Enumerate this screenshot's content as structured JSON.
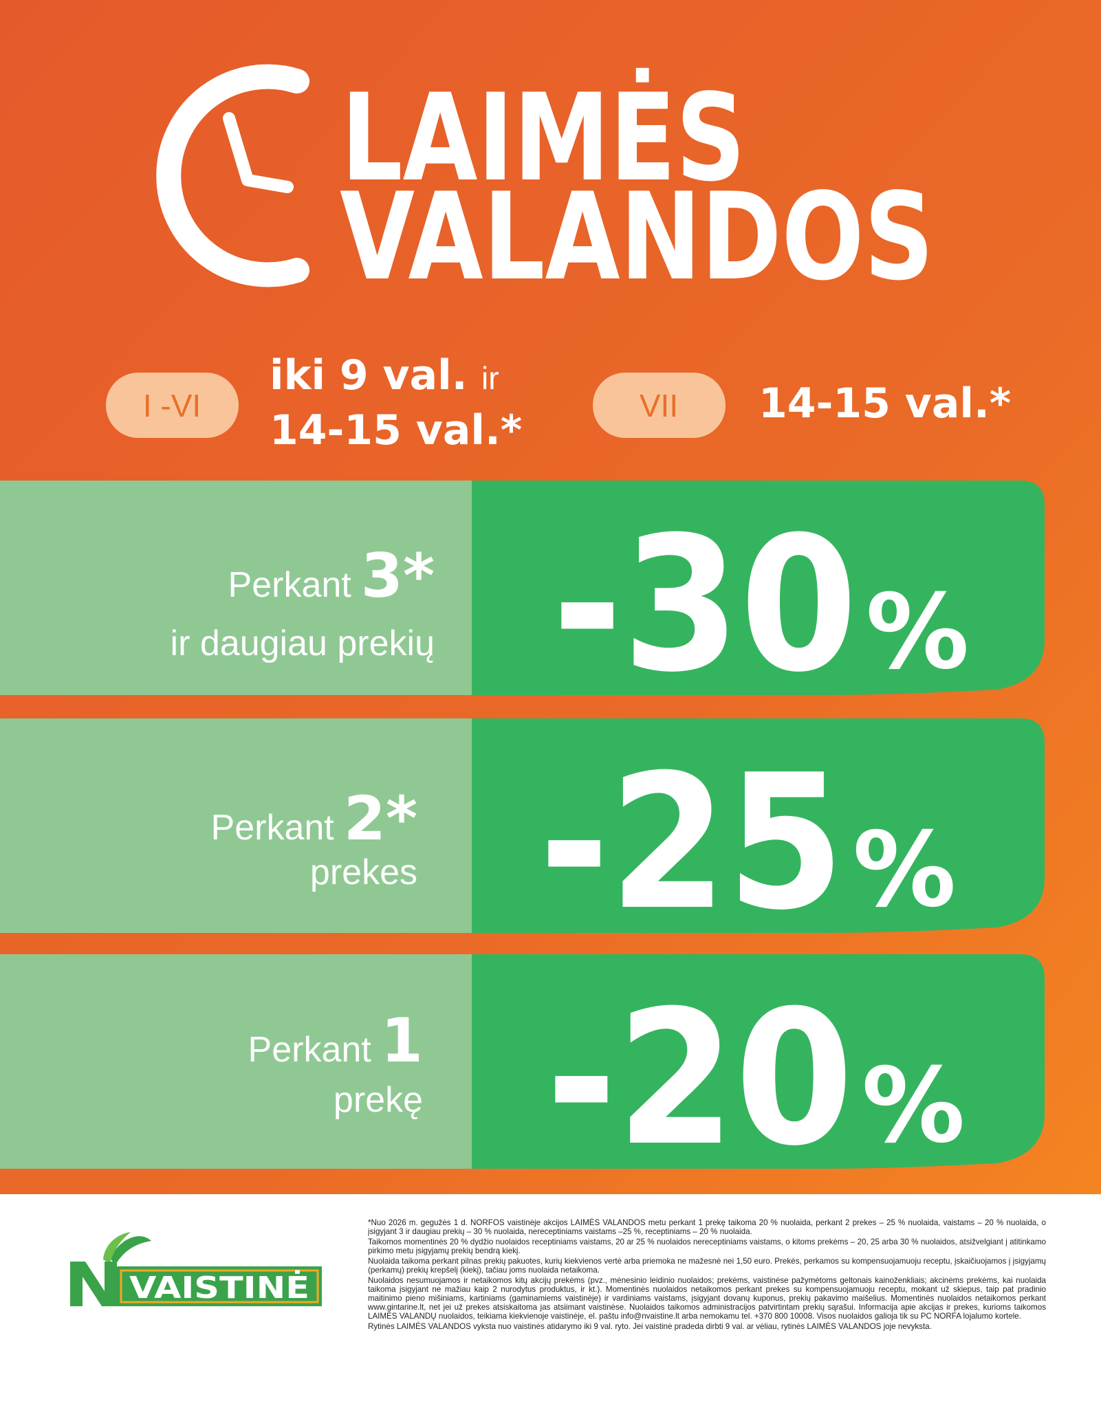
{
  "header": {
    "title_line1": "LAIMĖS",
    "title_line2": "VALANDOS"
  },
  "schedule": [
    {
      "days": "I -VI",
      "time_line1": "iki 9 val.",
      "connector": "ir",
      "time_line2": "14-15 val.*"
    },
    {
      "days": "VII",
      "time_line1": "14-15 val.*"
    }
  ],
  "offers": [
    {
      "prefix": "Perkant",
      "quantity": "3*",
      "suffix": "ir daugiau prekių",
      "amount": "-30",
      "unit": "%"
    },
    {
      "prefix": "Perkant",
      "quantity": "2*",
      "suffix": "prekes",
      "amount": "-25",
      "unit": "%"
    },
    {
      "prefix": "Perkant",
      "quantity": "1",
      "suffix": "prekę",
      "amount": "-20",
      "unit": "%"
    }
  ],
  "footer": {
    "logo": "VAISTINĖ",
    "fine_print": [
      "*Nuo 2026 m. gegužės 1 d. NORFOS vaistinėje akcijos LAIMĖS VALANDOS metu perkant 1 prekę taikoma 20 % nuolaida, perkant 2 prekes – 25 % nuolaida, vaistams – 20 % nuolaida, o įsigyjant 3 ir daugiau prekių – 30 % nuolaida, nereceptiniams vaistams –25 %, receptiniams – 20 % nuolaida.",
      "Taikomos momentinės 20 % dydžio nuolaidos receptiniams vaistams, 20 ar 25 % nuolaidos nereceptiniams vaistams, o kitoms prekėms – 20, 25 arba 30 % nuolaidos, atsižvelgiant į atitinkamo pirkimo metu įsigyjamų prekių bendrą kiekį.",
      "Nuolaida taikoma perkant pilnas prekių pakuotes, kurių kiekvienos vertė arba priemoka ne mažesnė nei 1,50 euro. Prekės, perkamos su kompensuojamuoju receptu, įskaičiuojamos į įsigyjamų (perkamų) prekių krepšelį (kiekį), tačiau joms nuolaida netaikoma.",
      "Nuolaidos nesumuojamos ir netaikomos kitų akcijų prekėms (pvz., mėnesinio leidinio nuolaidos; prekėms, vaistinėse pažymėtoms geltonais kainoženkliais; akcinėms prekėms, kai nuolaida taikoma įsigyjant ne mažiau kaip 2 nurodytus produktus, ir kt.). Momentinės nuolaidos netaikomos perkant prekes su kompensuojamuoju receptu, mokant už skiepus, taip pat pradinio maitinimo pieno mišiniams, kartiniams (gaminamiems vaistinėje) ir vardiniams vaistams, įsigyjant dovanų kuponus, prekių pakavimo maišelius. Momentinės nuolaidos netaikomos perkant www.gintarine.lt, net jei už prekes atsiskaitoma jas atsiimant vaistinėse. Nuolaidos taikomos administracijos patvirtintam prekių sąrašui. Informacija apie akcijas ir prekes, kurioms taikomos LAIMĖS VALANDŲ nuolaidos, teikiama kiekvienoje vaistinėje, el. paštu info@nvaistine.lt arba nemokamu tel. +370 800 10008. Visos nuolaidos galioja tik su PC NORFA lojalumo kortele.",
      "Rytinės LAIMĖS VALANDOS vyksta nuo vaistinės atidarymo iki 9 val. ryto. Jei vaistinė pradeda dirbti 9 val. ar vėliau, rytinės LAIMĖS VALANDOS joje nevyksta."
    ]
  }
}
